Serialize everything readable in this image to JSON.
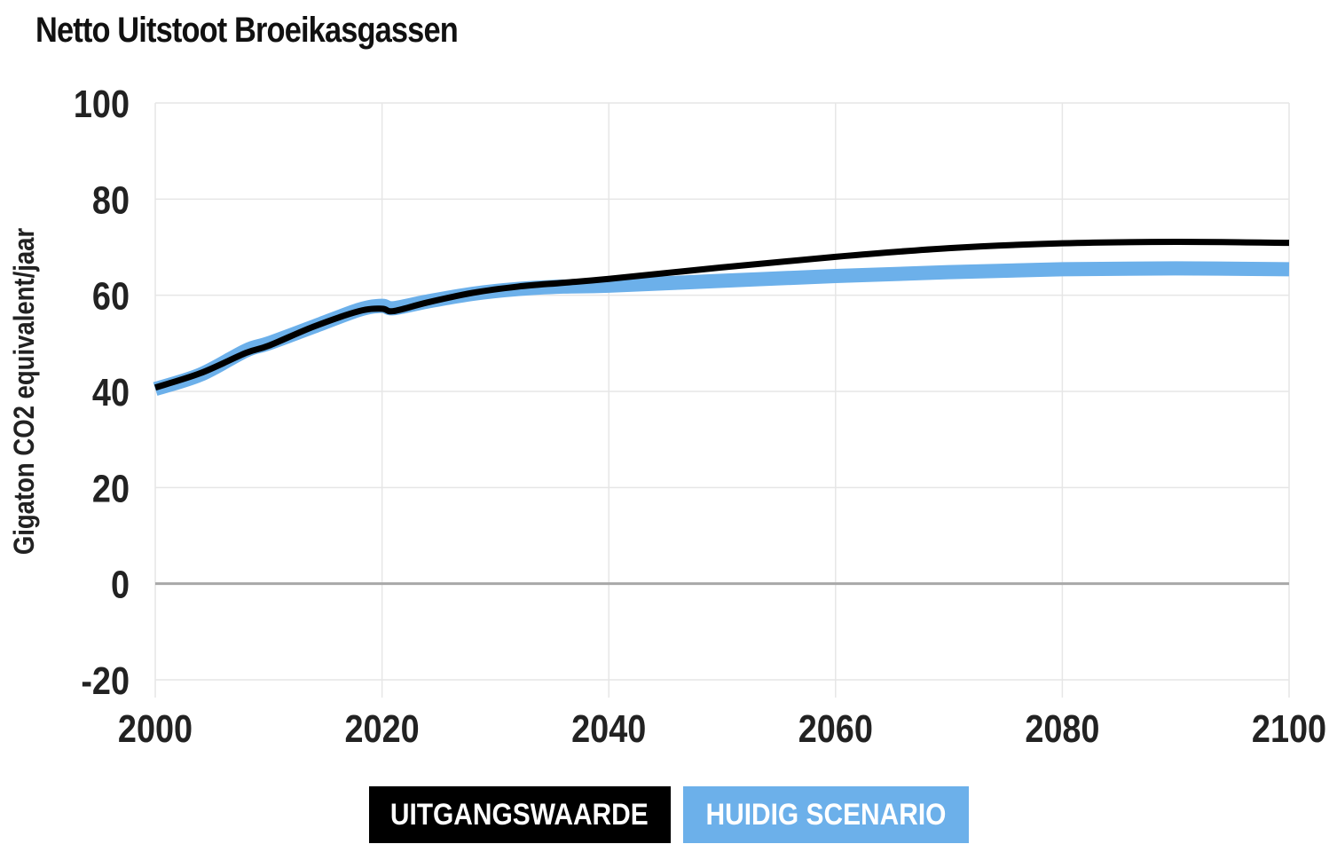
{
  "chart_data": {
    "type": "line",
    "title": "Netto Uitstoot Broeikasgassen",
    "xlabel": "",
    "ylabel": "Gigaton CO2 equivalent/jaar",
    "xlim": [
      2000,
      2100
    ],
    "ylim": [
      -20,
      100
    ],
    "x_ticks": [
      2000,
      2020,
      2040,
      2060,
      2080,
      2100
    ],
    "y_ticks": [
      -20,
      0,
      20,
      40,
      60,
      80,
      100
    ],
    "grid": true,
    "legend_placement": "bottom-center",
    "series": [
      {
        "name": "HUIDIG SCENARIO",
        "color": "#6cb0ea",
        "x": [
          2000,
          2004,
          2008,
          2010,
          2014,
          2018,
          2020,
          2021,
          2024,
          2028,
          2032,
          2036,
          2040,
          2050,
          2060,
          2070,
          2080,
          2090,
          2100
        ],
        "values": [
          40.5,
          43.5,
          48.5,
          50.0,
          53.5,
          57.0,
          57.8,
          57.3,
          58.7,
          60.3,
          61.3,
          61.8,
          62.0,
          63.0,
          64.0,
          64.8,
          65.4,
          65.6,
          65.4
        ]
      },
      {
        "name": "UITGANGSWAARDE",
        "color": "#000000",
        "x": [
          2000,
          2004,
          2008,
          2010,
          2014,
          2018,
          2020,
          2021,
          2024,
          2028,
          2032,
          2036,
          2040,
          2050,
          2060,
          2070,
          2080,
          2090,
          2100
        ],
        "values": [
          40.8,
          43.8,
          48.0,
          49.5,
          53.5,
          56.7,
          57.2,
          56.7,
          58.5,
          60.5,
          61.8,
          62.6,
          63.4,
          65.8,
          68.0,
          69.8,
          70.8,
          71.1,
          70.9
        ]
      }
    ]
  },
  "legend": {
    "baseline_label": "UITGANGSWAARDE",
    "current_label": "HUIDIG SCENARIO"
  },
  "colors": {
    "baseline": "#000000",
    "current": "#6cb0ea",
    "grid": "#e6e6e6",
    "zero_line": "#a8a8a8"
  }
}
